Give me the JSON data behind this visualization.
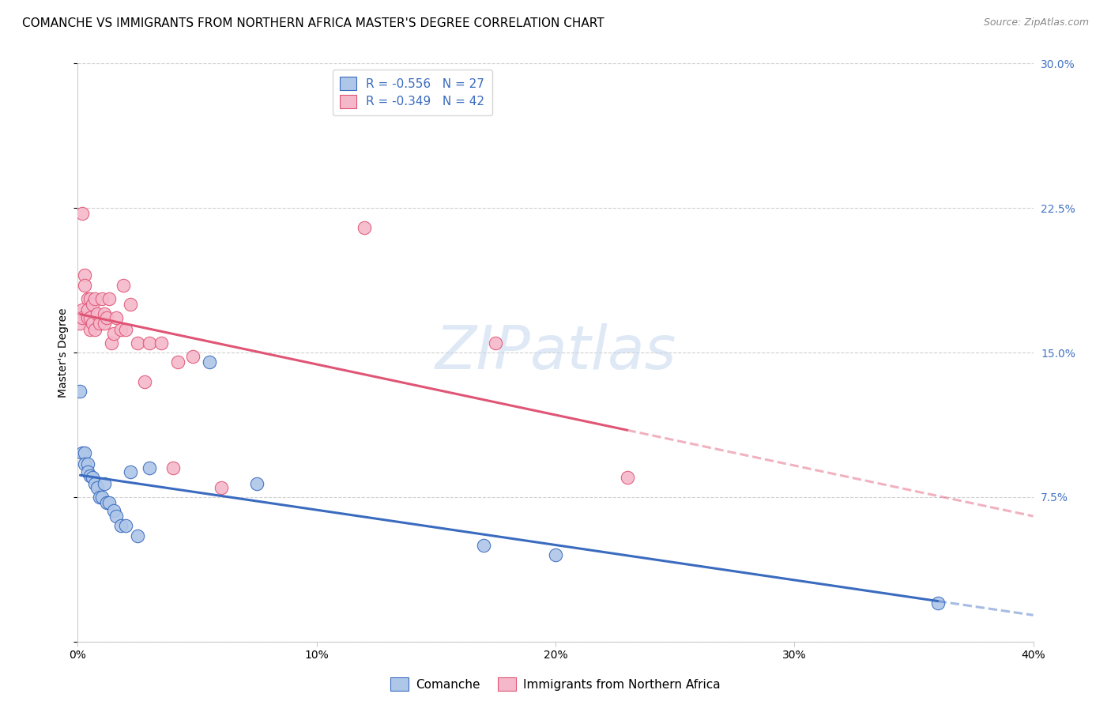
{
  "title": "COMANCHE VS IMMIGRANTS FROM NORTHERN AFRICA MASTER'S DEGREE CORRELATION CHART",
  "source": "Source: ZipAtlas.com",
  "ylabel": "Master's Degree",
  "legend_label1": "Comanche",
  "legend_label2": "Immigrants from Northern Africa",
  "r1": -0.556,
  "n1": 27,
  "r2": -0.349,
  "n2": 42,
  "color1": "#aec6e8",
  "color2": "#f5b8cb",
  "line_color1": "#3a6bbf",
  "line_color2": "#e05575",
  "right_axis_color": "#4472c4",
  "xlim": [
    0.0,
    0.4
  ],
  "ylim": [
    0.0,
    0.3
  ],
  "x_ticks": [
    0.0,
    0.1,
    0.2,
    0.3,
    0.4
  ],
  "y_ticks": [
    0.0,
    0.075,
    0.15,
    0.225,
    0.3
  ],
  "comanche_x": [
    0.001,
    0.002,
    0.003,
    0.003,
    0.004,
    0.004,
    0.005,
    0.006,
    0.007,
    0.008,
    0.009,
    0.01,
    0.011,
    0.012,
    0.013,
    0.015,
    0.016,
    0.018,
    0.02,
    0.022,
    0.025,
    0.03,
    0.055,
    0.075,
    0.17,
    0.2,
    0.36
  ],
  "comanche_y": [
    0.13,
    0.098,
    0.098,
    0.092,
    0.092,
    0.088,
    0.086,
    0.085,
    0.082,
    0.08,
    0.075,
    0.075,
    0.082,
    0.072,
    0.072,
    0.068,
    0.065,
    0.06,
    0.06,
    0.088,
    0.055,
    0.09,
    0.145,
    0.082,
    0.05,
    0.045,
    0.02
  ],
  "africa_x": [
    0.001,
    0.001,
    0.002,
    0.002,
    0.002,
    0.003,
    0.003,
    0.004,
    0.004,
    0.004,
    0.005,
    0.005,
    0.005,
    0.006,
    0.006,
    0.007,
    0.007,
    0.008,
    0.009,
    0.01,
    0.011,
    0.011,
    0.012,
    0.013,
    0.014,
    0.015,
    0.016,
    0.018,
    0.019,
    0.02,
    0.022,
    0.025,
    0.028,
    0.03,
    0.035,
    0.04,
    0.042,
    0.048,
    0.06,
    0.12,
    0.175,
    0.23
  ],
  "africa_y": [
    0.17,
    0.165,
    0.172,
    0.168,
    0.222,
    0.19,
    0.185,
    0.178,
    0.168,
    0.172,
    0.162,
    0.168,
    0.178,
    0.165,
    0.175,
    0.162,
    0.178,
    0.17,
    0.165,
    0.178,
    0.165,
    0.17,
    0.168,
    0.178,
    0.155,
    0.16,
    0.168,
    0.162,
    0.185,
    0.162,
    0.175,
    0.155,
    0.135,
    0.155,
    0.155,
    0.09,
    0.145,
    0.148,
    0.08,
    0.215,
    0.155,
    0.085
  ],
  "background_color": "#ffffff",
  "grid_color": "#d0d0d0",
  "title_fontsize": 11,
  "axis_label_fontsize": 10,
  "tick_fontsize": 10,
  "watermark": "ZIPatlas"
}
